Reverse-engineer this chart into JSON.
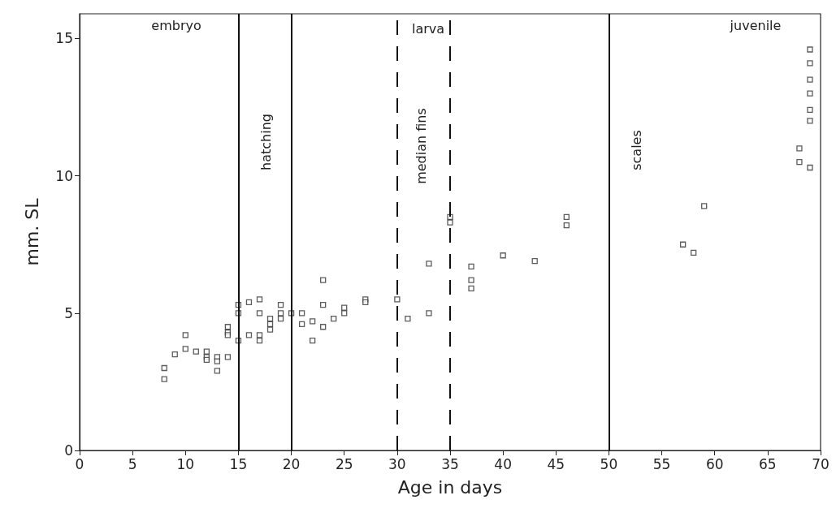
{
  "chart_data": {
    "type": "scatter",
    "xlabel": "Age in days",
    "ylabel": "mm. SL",
    "x": [
      8,
      8,
      9,
      10,
      10,
      11,
      12,
      12,
      12,
      13,
      13,
      13,
      14,
      14,
      14,
      14,
      15,
      15,
      15,
      16,
      16,
      17,
      17,
      17,
      17,
      18,
      18,
      18,
      19,
      19,
      19,
      20,
      21,
      21,
      22,
      22,
      23,
      23,
      23,
      24,
      25,
      25,
      27,
      27,
      30,
      31,
      33,
      33,
      35,
      35,
      37,
      37,
      37,
      40,
      43,
      46,
      46,
      57,
      58,
      59,
      68,
      68,
      69,
      69,
      69,
      69,
      69,
      69,
      69
    ],
    "values": [
      3.0,
      2.6,
      3.5,
      4.2,
      3.7,
      3.6,
      3.6,
      3.4,
      3.3,
      3.4,
      3.25,
      2.9,
      3.4,
      4.5,
      4.3,
      4.2,
      5.3,
      5.0,
      4.0,
      5.4,
      4.2,
      5.5,
      5.0,
      4.2,
      4.0,
      4.8,
      4.6,
      4.4,
      5.3,
      5.0,
      4.8,
      5.0,
      5.0,
      4.6,
      4.7,
      4.0,
      6.2,
      5.3,
      4.5,
      4.8,
      5.2,
      5.0,
      5.5,
      5.4,
      5.5,
      4.8,
      6.8,
      5.0,
      8.5,
      8.3,
      6.7,
      6.2,
      5.9,
      7.1,
      6.9,
      8.5,
      8.2,
      7.5,
      7.2,
      8.9,
      11.0,
      10.5,
      10.3,
      14.6,
      14.1,
      13.5,
      13.0,
      12.4,
      12.0
    ],
    "color": "#333333",
    "marker": "square",
    "xlim": [
      0,
      70
    ],
    "xticks": [
      0,
      5,
      10,
      15,
      20,
      25,
      30,
      35,
      40,
      45,
      50,
      55,
      60,
      65,
      70
    ],
    "ylim": [
      0,
      15.9
    ],
    "yticks": [
      0,
      5,
      10,
      15
    ],
    "grid": false,
    "ref_lines": [
      {
        "axis": "x",
        "value": 15,
        "label": null
      },
      {
        "axis": "x",
        "value": 20,
        "label": "hatching"
      },
      {
        "axis": "x",
        "value": 50,
        "label": "scales"
      },
      {
        "axis": "x",
        "value": 30,
        "label": "median fins",
        "line_style": "dashed"
      },
      {
        "axis": "x",
        "value": 35,
        "label": null,
        "line_style": "dashed"
      }
    ],
    "annotations": [
      "embryo",
      "larva",
      "juvenile"
    ]
  }
}
